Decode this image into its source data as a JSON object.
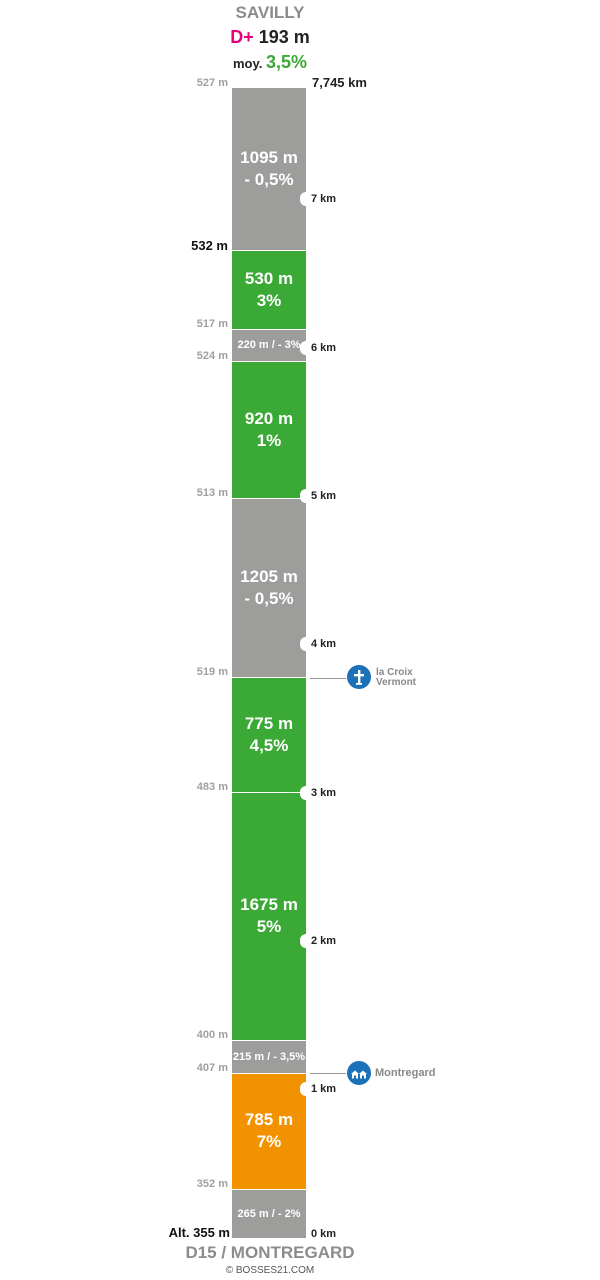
{
  "header": {
    "title": "SAVILLY",
    "dplus_symbol": "D+",
    "dplus_value": "193 m",
    "avg_label": "moy.",
    "avg_value": "3,5%"
  },
  "top": {
    "altitude": "527 m",
    "distance": "7,745 km"
  },
  "segments": [
    {
      "length": "1095 m",
      "grade": "- 0,5%",
      "color": "gray"
    },
    {
      "length": "530 m",
      "grade": "3%",
      "color": "green"
    },
    {
      "label": "220 m / - 3%",
      "color": "gray"
    },
    {
      "length": "920 m",
      "grade": "1%",
      "color": "green"
    },
    {
      "length": "1205 m",
      "grade": "- 0,5%",
      "color": "gray"
    },
    {
      "length": "775 m",
      "grade": "4,5%",
      "color": "green"
    },
    {
      "length": "1675 m",
      "grade": "5%",
      "color": "green"
    },
    {
      "label": "215 m / - 3,5%",
      "color": "gray"
    },
    {
      "length": "785 m",
      "grade": "7%",
      "color": "orange"
    },
    {
      "label": "265 m / - 2%",
      "color": "gray"
    }
  ],
  "altitudes": [
    "532 m",
    "517 m",
    "524 m",
    "513 m",
    "519 m",
    "483 m",
    "400 m",
    "407 m",
    "352 m"
  ],
  "km_markers": [
    "7 km",
    "6 km",
    "5 km",
    "4 km",
    "3 km",
    "2 km",
    "1 km",
    "0 km"
  ],
  "pois": [
    {
      "name_line1": "la Croix",
      "name_line2": "Vermont",
      "icon": "cross-icon"
    },
    {
      "name_line1": "Montregard",
      "icon": "village-icon"
    }
  ],
  "footer": {
    "start_altitude": "Alt. 355 m",
    "start_name": "D15 / MONTREGARD",
    "copyright": "© BOSSES21.COM"
  },
  "colors": {
    "gray": "#9d9d9c",
    "green": "#3aa935",
    "orange": "#f39200",
    "dplus": "#e6007e",
    "poi": "#1d71b8"
  }
}
